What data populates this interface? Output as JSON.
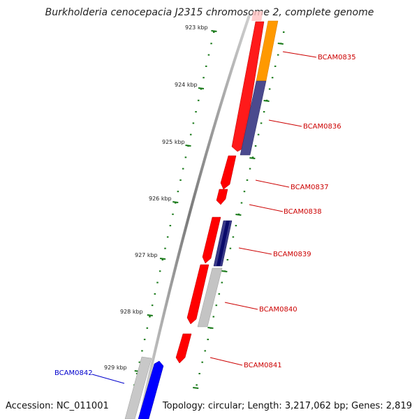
{
  "title": "Burkholderia cenocepacia J2315 chromosome 2, complete genome",
  "footer": {
    "accession": "Accession: NC_011001",
    "summary": "Topology: circular; Length: 3,217,062 bp; Genes: 2,819"
  },
  "ruler": {
    "ticks": [
      "923 kbp",
      "924 kbp",
      "925 kbp",
      "926 kbp",
      "927 kbp",
      "928 kbp",
      "929 kbp"
    ]
  },
  "genes": [
    {
      "label": "BCAM0835",
      "color": "#cc0000"
    },
    {
      "label": "BCAM0836",
      "color": "#cc0000"
    },
    {
      "label": "BCAM0837",
      "color": "#cc0000"
    },
    {
      "label": "BCAM0838",
      "color": "#cc0000"
    },
    {
      "label": "BCAM0839",
      "color": "#cc0000"
    },
    {
      "label": "BCAM0840",
      "color": "#cc0000"
    },
    {
      "label": "BCAM0841",
      "color": "#cc0000"
    },
    {
      "label": "BCAM0842",
      "color": "#0000cc"
    }
  ],
  "colors": {
    "forward_strand": "#ff0000",
    "reverse_strand": "#0000ff",
    "cog_orange": "#ff9900",
    "cog_purple": "#4b4a8e",
    "cog_grey": "#bdbdbd",
    "tick_green": "#1a7a1a",
    "backbone": "#8c8c8c"
  }
}
